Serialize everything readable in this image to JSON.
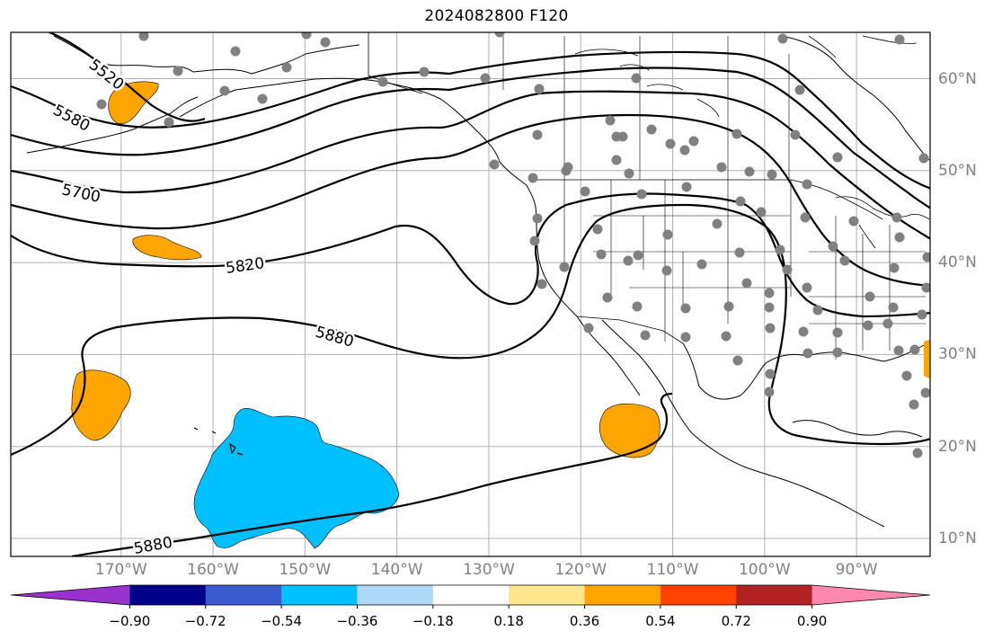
{
  "title": "2024082800 F120",
  "map": {
    "projection": "PlateCarree",
    "extent": {
      "lon_min": -180,
      "lon_max": -80,
      "lat_min": 8,
      "lat_max": 65
    },
    "gridlines": true,
    "lon_labels": [
      "170°W",
      "160°W",
      "150°W",
      "140°W",
      "130°W",
      "120°W",
      "110°W",
      "100°W",
      "90°W"
    ],
    "lat_labels": [
      "60°N",
      "50°N",
      "40°N",
      "30°N",
      "20°N",
      "10°N"
    ],
    "contour_labels": [
      "5520",
      "5580",
      "5700",
      "5820",
      "5880",
      "5880"
    ],
    "station_marker_color": "#808080",
    "land_outline_color": "#000000"
  },
  "colorbar": {
    "ticks": [
      "−0.90",
      "−0.72",
      "−0.54",
      "−0.36",
      "−0.18",
      "0.18",
      "0.36",
      "0.54",
      "0.72",
      "0.90"
    ],
    "colors": [
      "#9932cc",
      "#00008b",
      "#3a5bd0",
      "#00bfff",
      "#add8f6",
      "#ffffff",
      "#ffe68a",
      "#ffa500",
      "#ff4000",
      "#b22222",
      "#ff88b0"
    ],
    "extend": "both"
  }
}
